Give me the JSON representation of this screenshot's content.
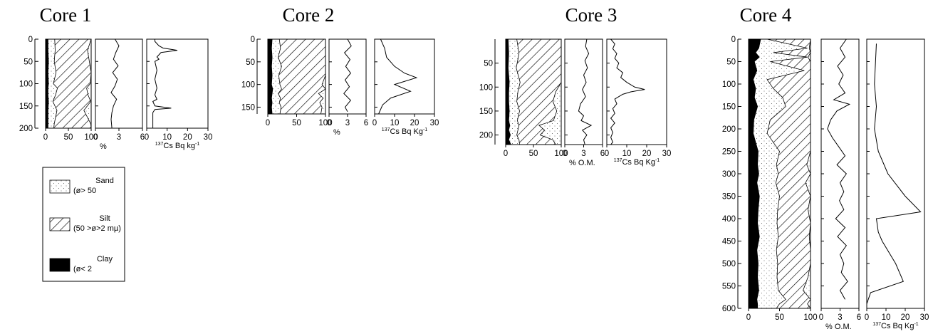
{
  "chart_data": [
    {
      "type": "area",
      "panel": "grain-size",
      "core": 1,
      "title": "Core 1",
      "xlabel": "",
      "xticks": [
        0,
        50,
        100
      ],
      "xlim": [
        -20,
        100
      ],
      "ylim": [
        0,
        200
      ],
      "yticks": [
        0,
        50,
        100,
        150,
        200
      ],
      "depth": [
        0,
        25,
        50,
        75,
        100,
        110,
        125,
        140,
        160,
        190,
        200
      ],
      "clay": [
        6,
        6,
        7,
        6,
        7,
        6,
        6,
        7,
        6,
        6,
        6
      ],
      "clay_silt": [
        20,
        21,
        19,
        23,
        17,
        26,
        22,
        16,
        25,
        19,
        18
      ],
      "sand_boundary": [
        100,
        92,
        96,
        100,
        98,
        90,
        93,
        99,
        84,
        99,
        100
      ]
    },
    {
      "type": "line",
      "panel": "organic-matter",
      "core": 1,
      "xlabel": "%",
      "xticks": [
        0,
        3,
        6
      ],
      "xlim": [
        0,
        6
      ],
      "ylim": [
        0,
        200
      ],
      "depth": [
        0,
        15,
        30,
        45,
        60,
        75,
        90,
        105,
        120,
        135,
        150,
        165,
        180,
        200
      ],
      "values": [
        2.5,
        3.0,
        2.6,
        2.3,
        2.9,
        2.2,
        2.8,
        2.5,
        2.0,
        2.7,
        2.3,
        2.1,
        2.0,
        2.1
      ]
    },
    {
      "type": "line",
      "panel": "cs137",
      "core": 1,
      "xlabel": "Cs Bq kg",
      "xticks": [
        0,
        10,
        20,
        30
      ],
      "xlim": [
        0,
        30
      ],
      "ylim": [
        0,
        200
      ],
      "depth": [
        0,
        5,
        15,
        20,
        25,
        30,
        35,
        40,
        45,
        50,
        70,
        90,
        110,
        125,
        135,
        140,
        150,
        155,
        158,
        165,
        175,
        185,
        200
      ],
      "values": [
        4,
        4,
        6,
        8,
        15,
        7,
        6,
        5,
        6,
        4,
        5,
        4,
        5,
        4,
        5,
        3,
        4,
        12,
        4,
        3,
        3,
        3,
        3
      ]
    },
    {
      "type": "area",
      "panel": "grain-size",
      "core": 2,
      "title": "Core 2",
      "xlabel": "",
      "xticks": [
        0,
        50,
        100
      ],
      "xlim": [
        -20,
        100
      ],
      "ylim": [
        0,
        165
      ],
      "yticks": [
        0,
        50,
        100,
        150
      ],
      "depth": [
        0,
        20,
        40,
        60,
        80,
        100,
        110,
        120,
        130,
        140,
        150,
        165
      ],
      "clay": [
        8,
        7,
        8,
        7,
        8,
        7,
        9,
        8,
        7,
        8,
        7,
        8
      ],
      "clay_silt": [
        20,
        22,
        18,
        24,
        19,
        21,
        24,
        18,
        22,
        20,
        23,
        21
      ],
      "sand_boundary": [
        100,
        100,
        100,
        100,
        100,
        94,
        100,
        88,
        96,
        90,
        94,
        92
      ]
    },
    {
      "type": "line",
      "panel": "organic-matter",
      "core": 2,
      "xlabel": "%",
      "xticks": [
        0,
        3,
        6
      ],
      "xlim": [
        0,
        6
      ],
      "ylim": [
        0,
        165
      ],
      "depth": [
        0,
        15,
        30,
        45,
        60,
        75,
        90,
        105,
        120,
        135,
        150,
        160
      ],
      "values": [
        3.0,
        3.6,
        2.5,
        3.4,
        2.7,
        3.5,
        2.6,
        3.3,
        2.4,
        3.5,
        2.6,
        3.0
      ]
    },
    {
      "type": "line",
      "panel": "cs137",
      "core": 2,
      "xlabel": "Cs Bq Kg",
      "xticks": [
        0,
        10,
        20,
        30
      ],
      "xlim": [
        0,
        30
      ],
      "ylim": [
        0,
        165
      ],
      "depth": [
        0,
        20,
        40,
        60,
        75,
        85,
        100,
        115,
        130,
        145,
        165
      ],
      "values": [
        3,
        5,
        6,
        10,
        15,
        21,
        10,
        18,
        8,
        4,
        2
      ]
    },
    {
      "type": "area",
      "panel": "grain-size",
      "core": 3,
      "title": "Core 3",
      "xlabel": "",
      "xticks": [
        0,
        50,
        100
      ],
      "xlim": [
        -20,
        100
      ],
      "ylim": [
        0,
        220
      ],
      "yticks": [
        50,
        100,
        150,
        200
      ],
      "depth": [
        0,
        30,
        60,
        90,
        110,
        130,
        150,
        170,
        180,
        190,
        200,
        210,
        220
      ],
      "clay": [
        5,
        6,
        5,
        7,
        6,
        6,
        7,
        6,
        8,
        6,
        9,
        6,
        10
      ],
      "clay_silt": [
        20,
        24,
        19,
        26,
        22,
        20,
        25,
        21,
        24,
        22,
        20,
        24,
        25
      ],
      "sand_boundary": [
        100,
        100,
        100,
        100,
        90,
        85,
        92,
        86,
        60,
        70,
        62,
        85,
        90
      ]
    },
    {
      "type": "line",
      "panel": "organic-matter",
      "core": 3,
      "xlabel": "% O.M.",
      "xticks": [
        0,
        3,
        6
      ],
      "xlim": [
        0,
        6
      ],
      "ylim": [
        0,
        220
      ],
      "depth": [
        0,
        15,
        30,
        45,
        60,
        75,
        90,
        105,
        120,
        135,
        150,
        160,
        170,
        180,
        190,
        200,
        210,
        220
      ],
      "values": [
        3.5,
        3.3,
        3.8,
        3.2,
        3.6,
        3.0,
        3.4,
        2.8,
        3.3,
        2.5,
        2.2,
        3.0,
        2.6,
        4.2,
        2.8,
        3.5,
        3.0,
        3.2
      ]
    },
    {
      "type": "line",
      "panel": "cs137",
      "core": 3,
      "xlabel": "Cs Bq Kg",
      "xticks": [
        0,
        10,
        20,
        30
      ],
      "xlim": [
        0,
        30
      ],
      "ylim": [
        0,
        220
      ],
      "depth": [
        0,
        10,
        20,
        30,
        40,
        50,
        60,
        70,
        80,
        90,
        100,
        105,
        110,
        115,
        125,
        135,
        145,
        155,
        165,
        175,
        185,
        195,
        205,
        215,
        220
      ],
      "values": [
        2,
        4,
        3,
        5,
        4,
        6,
        5,
        8,
        7,
        10,
        14,
        19,
        12,
        8,
        4,
        5,
        3,
        4,
        2,
        4,
        2,
        3,
        2,
        3,
        2
      ]
    },
    {
      "type": "area",
      "panel": "grain-size",
      "core": 4,
      "title": "Core 4",
      "xlabel": "",
      "xticks": [
        0,
        50,
        100
      ],
      "xlim": [
        -20,
        100
      ],
      "ylim": [
        0,
        600
      ],
      "yticks": [
        0,
        50,
        100,
        150,
        200,
        250,
        300,
        350,
        400,
        450,
        500,
        550,
        600
      ],
      "depth": [
        0,
        20,
        30,
        40,
        50,
        70,
        90,
        110,
        130,
        150,
        180,
        210,
        240,
        250,
        280,
        300,
        320,
        350,
        380,
        410,
        440,
        470,
        500,
        530,
        560,
        580,
        590,
        600
      ],
      "clay": [
        20,
        17,
        12,
        18,
        10,
        14,
        8,
        12,
        10,
        15,
        9,
        8,
        14,
        16,
        15,
        17,
        14,
        18,
        16,
        15,
        18,
        14,
        16,
        15,
        17,
        14,
        15,
        15
      ],
      "clay_silt": [
        30,
        95,
        40,
        95,
        35,
        90,
        30,
        40,
        55,
        60,
        35,
        30,
        45,
        50,
        45,
        48,
        44,
        50,
        47,
        46,
        48,
        45,
        47,
        46,
        48,
        60,
        50,
        45
      ],
      "sand_boundary": [
        100,
        98,
        100,
        96,
        100,
        100,
        100,
        100,
        100,
        100,
        100,
        100,
        100,
        100,
        94,
        100,
        92,
        100,
        96,
        100,
        98,
        100,
        100,
        96,
        88,
        100,
        95,
        100
      ]
    },
    {
      "type": "line",
      "panel": "organic-matter",
      "core": 4,
      "xlabel": "% O.M.",
      "xticks": [
        0,
        3,
        6
      ],
      "xlim": [
        0,
        6
      ],
      "ylim": [
        0,
        600
      ],
      "depth": [
        0,
        20,
        40,
        60,
        80,
        100,
        120,
        135,
        145,
        160,
        180,
        200,
        220,
        240,
        260,
        280,
        300,
        320,
        340,
        360,
        380,
        400,
        420,
        440,
        460,
        480,
        500,
        520,
        540,
        560,
        580
      ],
      "values": [
        4.0,
        3.0,
        3.8,
        2.6,
        3.5,
        2.8,
        3.8,
        2.0,
        4.5,
        2.5,
        1.5,
        1.0,
        1.8,
        2.8,
        3.8,
        2.5,
        4.0,
        3.0,
        3.6,
        2.9,
        3.6,
        2.3,
        3.8,
        2.6,
        4.0,
        3.0,
        3.6,
        3.2,
        4.2,
        3.0,
        3.8
      ]
    },
    {
      "type": "line",
      "panel": "cs137",
      "core": 4,
      "xlabel": "Cs Bq Kg",
      "xticks": [
        0,
        10,
        20,
        30
      ],
      "xlim": [
        0,
        30
      ],
      "ylim": [
        0,
        600
      ],
      "depth": [
        10,
        100,
        150,
        200,
        250,
        300,
        350,
        385,
        400,
        430,
        450,
        500,
        540,
        565,
        590
      ],
      "values": [
        5,
        4,
        5,
        4,
        6,
        11,
        20,
        28,
        5,
        6,
        8,
        15,
        19,
        2,
        0
      ]
    }
  ],
  "legend": [
    {
      "label": "Sand",
      "detail": "(ø> 50"
    },
    {
      "label": "Silt",
      "detail": "(50 >ø>2 mµ)"
    },
    {
      "label": "Clay",
      "detail": "(ø< 2"
    }
  ],
  "cs_superscript": "137",
  "cs_kg_superscript": "-1"
}
